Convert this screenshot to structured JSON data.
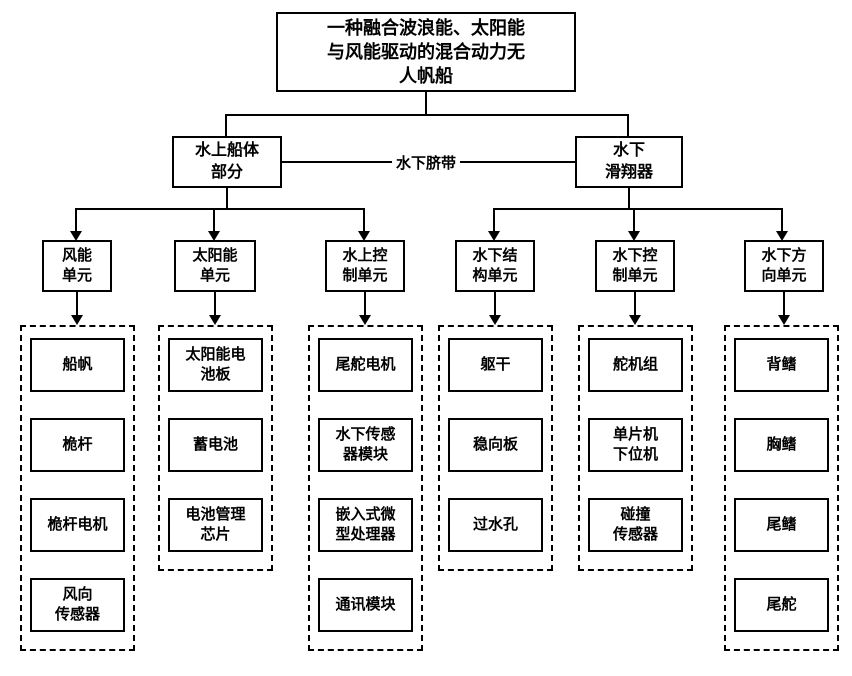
{
  "diagram": {
    "type": "tree",
    "background_color": "#ffffff",
    "stroke_color": "#000000",
    "font_family": "SimSun",
    "font_weight": "bold",
    "root": {
      "text": "一种融合波浪能、太阳能\n与风能驱动的混合动力无\n人帆船",
      "fontsize": 18
    },
    "level2_left": {
      "text": "水上船体\n部分",
      "fontsize": 16
    },
    "level2_right": {
      "text": "水下\n滑翔器",
      "fontsize": 16
    },
    "connector_label": "水下脐带",
    "categories": [
      {
        "label": "风能\n单元",
        "items": [
          "船帆",
          "桅杆",
          "桅杆电机",
          "风向\n传感器"
        ]
      },
      {
        "label": "太阳能\n单元",
        "items": [
          "太阳能电\n池板",
          "蓄电池",
          "电池管理\n芯片"
        ]
      },
      {
        "label": "水上控\n制单元",
        "items": [
          "尾舵电机",
          "水下传感\n器模块",
          "嵌入式微\n型处理器",
          "通讯模块"
        ]
      },
      {
        "label": "水下结\n构单元",
        "items": [
          "躯干",
          "稳向板",
          "过水孔"
        ]
      },
      {
        "label": "水下控\n制单元",
        "items": [
          "舵机组",
          "单片机\n下位机",
          "碰撞\n传感器"
        ]
      },
      {
        "label": "水下方\n向单元",
        "items": [
          "背鳍",
          "胸鳍",
          "尾鳍",
          "尾舵"
        ]
      }
    ],
    "category_fontsize": 15,
    "item_fontsize": 15
  }
}
